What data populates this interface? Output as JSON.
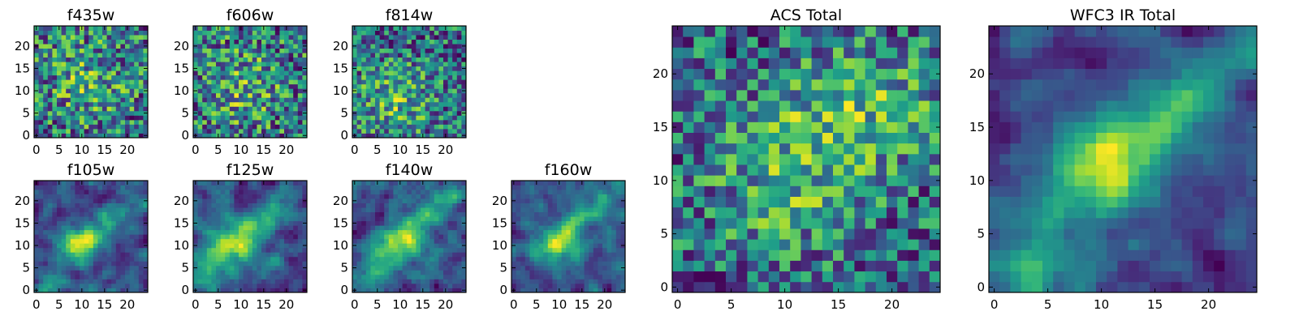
{
  "figure": {
    "background": "#ffffff"
  },
  "colormap": {
    "name": "viridis",
    "stops": [
      "#440154",
      "#482878",
      "#3e4989",
      "#31688e",
      "#26828e",
      "#1f9e89",
      "#35b779",
      "#6ece58",
      "#b5de2b",
      "#fde725"
    ]
  },
  "chart_data": [
    {
      "id": "f435w",
      "type": "heatmap",
      "title": "f435w",
      "size": 25,
      "xticks": [
        0,
        5,
        10,
        15,
        20
      ],
      "yticks": [
        0,
        5,
        10,
        15,
        20
      ],
      "texture": "noise",
      "seed": 11,
      "blobs": [
        {
          "cx": 11,
          "cy": 12,
          "sx": 6,
          "sy": 6,
          "rho": 0,
          "amp": 0.25
        }
      ],
      "noise_amp": 1.0,
      "base": 0.55
    },
    {
      "id": "f606w",
      "type": "heatmap",
      "title": "f606w",
      "size": 25,
      "xticks": [
        0,
        5,
        10,
        15,
        20
      ],
      "yticks": [
        0,
        5,
        10,
        15,
        20
      ],
      "texture": "noise",
      "seed": 23,
      "blobs": [
        {
          "cx": 10,
          "cy": 11,
          "sx": 6,
          "sy": 6,
          "rho": 0,
          "amp": 0.25
        }
      ],
      "noise_amp": 1.0,
      "base": 0.55
    },
    {
      "id": "f814w",
      "type": "heatmap",
      "title": "f814w",
      "size": 25,
      "xticks": [
        0,
        5,
        10,
        15,
        20
      ],
      "yticks": [
        0,
        5,
        10,
        15,
        20
      ],
      "texture": "noise",
      "seed": 37,
      "blobs": [
        {
          "cx": 9,
          "cy": 8,
          "sx": 6,
          "sy": 6,
          "rho": 0,
          "amp": 0.35
        }
      ],
      "noise_amp": 1.0,
      "base": 0.5
    },
    {
      "id": "f105w",
      "type": "heatmap",
      "title": "f105w",
      "size": 25,
      "xticks": [
        0,
        5,
        10,
        15,
        20
      ],
      "yticks": [
        0,
        5,
        10,
        15,
        20
      ],
      "texture": "smooth",
      "seed": 41,
      "blobs": [
        {
          "cx": 10,
          "cy": 10,
          "sx": 3.5,
          "sy": 3,
          "rho": 0,
          "amp": 0.55
        },
        {
          "cx": 14,
          "cy": 14,
          "sx": 8,
          "sy": 2.5,
          "rho": 0.7,
          "amp": 0.35
        },
        {
          "cx": 3,
          "cy": 1,
          "sx": 3,
          "sy": 3,
          "rho": 0,
          "amp": 0.35
        }
      ],
      "noise_amp": 0.55,
      "base": 0.35
    },
    {
      "id": "f125w",
      "type": "heatmap",
      "title": "f125w",
      "size": 25,
      "xticks": [
        0,
        5,
        10,
        15,
        20
      ],
      "yticks": [
        0,
        5,
        10,
        15,
        20
      ],
      "texture": "smooth",
      "seed": 53,
      "blobs": [
        {
          "cx": 9,
          "cy": 10,
          "sx": 3.5,
          "sy": 3,
          "rho": 0,
          "amp": 0.6
        },
        {
          "cx": 15,
          "cy": 16,
          "sx": 8,
          "sy": 2.5,
          "rho": 0.7,
          "amp": 0.35
        },
        {
          "cx": 3,
          "cy": 3,
          "sx": 3,
          "sy": 4,
          "rho": 0,
          "amp": 0.3
        }
      ],
      "noise_amp": 0.55,
      "base": 0.35
    },
    {
      "id": "f140w",
      "type": "heatmap",
      "title": "f140w",
      "size": 25,
      "xticks": [
        0,
        5,
        10,
        15,
        20
      ],
      "yticks": [
        0,
        5,
        10,
        15,
        20
      ],
      "texture": "smooth",
      "seed": 67,
      "blobs": [
        {
          "cx": 10,
          "cy": 10,
          "sx": 3.5,
          "sy": 3,
          "rho": 0,
          "amp": 0.5
        },
        {
          "cx": 15,
          "cy": 16,
          "sx": 9,
          "sy": 2.5,
          "rho": 0.7,
          "amp": 0.4
        },
        {
          "cx": 3,
          "cy": 2,
          "sx": 3,
          "sy": 3,
          "rho": 0,
          "amp": 0.3
        }
      ],
      "noise_amp": 0.55,
      "base": 0.33
    },
    {
      "id": "f160w",
      "type": "heatmap",
      "title": "f160w",
      "size": 25,
      "xticks": [
        0,
        5,
        10,
        15,
        20
      ],
      "yticks": [
        0,
        5,
        10,
        15,
        20
      ],
      "texture": "smooth",
      "seed": 79,
      "blobs": [
        {
          "cx": 10,
          "cy": 10,
          "sx": 3.5,
          "sy": 3,
          "rho": 0,
          "amp": 0.55
        },
        {
          "cx": 15,
          "cy": 16,
          "sx": 9,
          "sy": 2.2,
          "rho": 0.75,
          "amp": 0.45
        }
      ],
      "noise_amp": 0.5,
      "base": 0.3
    },
    {
      "id": "acs-total",
      "type": "heatmap",
      "title": "ACS Total",
      "size": 25,
      "xticks": [
        0,
        5,
        10,
        15,
        20
      ],
      "yticks": [
        0,
        5,
        10,
        15,
        20
      ],
      "texture": "noise",
      "seed": 97,
      "blobs": [
        {
          "cx": 17,
          "cy": 17,
          "sx": 5,
          "sy": 4,
          "rho": 0,
          "amp": 0.3
        },
        {
          "cx": 10,
          "cy": 10,
          "sx": 5,
          "sy": 5,
          "rho": 0,
          "amp": 0.25
        }
      ],
      "noise_amp": 0.7,
      "base": 0.55
    },
    {
      "id": "wfc3-ir-total",
      "type": "heatmap",
      "title": "WFC3 IR Total",
      "size": 25,
      "xticks": [
        0,
        5,
        10,
        15,
        20
      ],
      "yticks": [
        0,
        5,
        10,
        15,
        20
      ],
      "texture": "smooth",
      "seed": 113,
      "blobs": [
        {
          "cx": 10,
          "cy": 11,
          "sx": 3.5,
          "sy": 3.2,
          "rho": 0,
          "amp": 0.6
        },
        {
          "cx": 17,
          "cy": 17,
          "sx": 7,
          "sy": 3,
          "rho": 0.7,
          "amp": 0.45
        },
        {
          "cx": 4,
          "cy": 2,
          "sx": 4,
          "sy": 4,
          "rho": 0,
          "amp": 0.35
        }
      ],
      "noise_amp": 0.4,
      "base": 0.3
    }
  ]
}
